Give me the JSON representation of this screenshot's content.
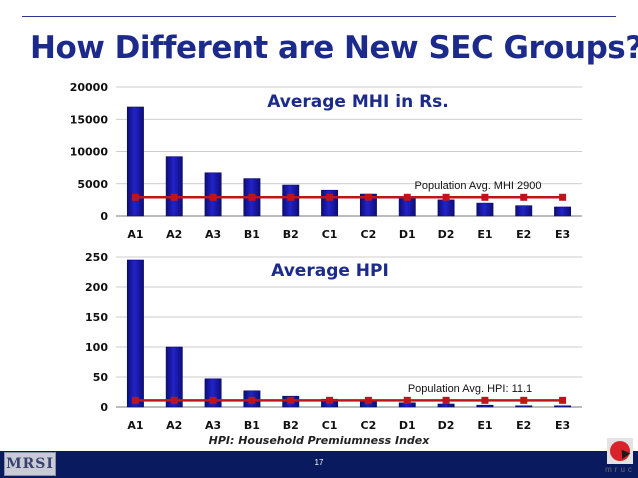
{
  "slide": {
    "title": "How Different are New SEC Groups?",
    "footnote": "HPI: Household Premiumness Index",
    "page_number": "17",
    "logo_left_text": "MRSI",
    "logo_right_text": "mruc"
  },
  "colors": {
    "title": "#1c2a8c",
    "bar": "#2323c8",
    "line": "#c0141c",
    "footer": "#0a1a5e"
  },
  "chart_data": [
    {
      "type": "bar",
      "title": "Average MHI in Rs.",
      "categories": [
        "A1",
        "A2",
        "A3",
        "B1",
        "B2",
        "C1",
        "C2",
        "D1",
        "D2",
        "E1",
        "E2",
        "E3"
      ],
      "values": [
        16900,
        9200,
        6700,
        5800,
        4800,
        4000,
        3400,
        3000,
        2500,
        2000,
        1600,
        1400
      ],
      "ylim": [
        0,
        20000
      ],
      "yticks": [
        "0",
        "5000",
        "10000",
        "15000",
        "20000"
      ],
      "grid": true,
      "reference_line": {
        "value": 2900,
        "label": "Population Avg. MHI 2900"
      }
    },
    {
      "type": "bar",
      "title": "Average HPI",
      "categories": [
        "A1",
        "A2",
        "A3",
        "B1",
        "B2",
        "C1",
        "C2",
        "D1",
        "D2",
        "E1",
        "E2",
        "E3"
      ],
      "values": [
        245,
        100,
        47,
        27,
        18,
        13,
        11,
        7,
        5,
        3,
        2,
        2
      ],
      "ylim": [
        0,
        250
      ],
      "yticks": [
        "0",
        "50",
        "100",
        "150",
        "200",
        "250"
      ],
      "grid": true,
      "reference_line": {
        "value": 11.1,
        "label": "Population Avg. HPI: 11.1"
      }
    }
  ]
}
